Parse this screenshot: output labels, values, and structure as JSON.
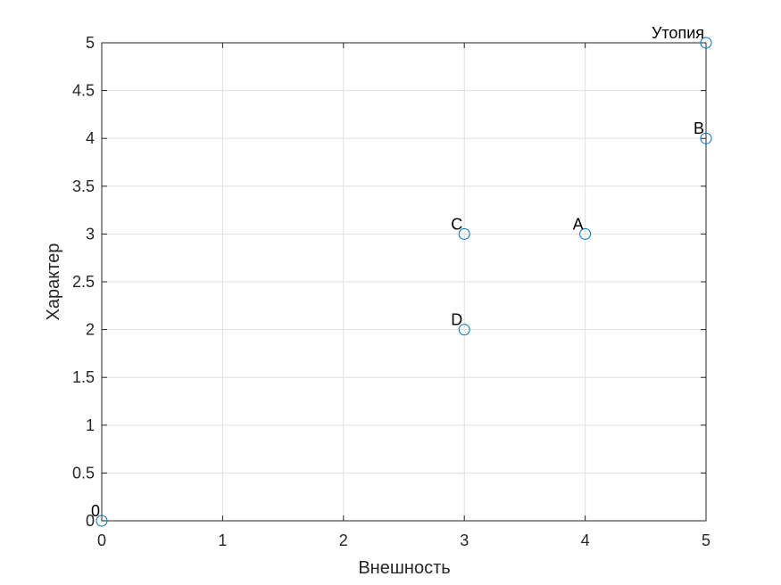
{
  "chart_data": {
    "type": "scatter",
    "xlabel": "Внешность",
    "ylabel": "Характер",
    "xlim": [
      0,
      5
    ],
    "ylim": [
      0,
      5
    ],
    "x_ticks": [
      "0",
      "1",
      "2",
      "3",
      "4",
      "5"
    ],
    "y_ticks": [
      "0",
      "0.5",
      "1",
      "1.5",
      "2",
      "2.5",
      "3",
      "3.5",
      "4",
      "4.5",
      "5"
    ],
    "grid": true,
    "marker": "circle-open",
    "color": "#0072BD",
    "points": [
      {
        "label": "0",
        "x": 0,
        "y": 0
      },
      {
        "label": "C",
        "x": 3,
        "y": 3
      },
      {
        "label": "D",
        "x": 3,
        "y": 2
      },
      {
        "label": "A",
        "x": 4,
        "y": 3
      },
      {
        "label": "B",
        "x": 5,
        "y": 4
      },
      {
        "label": "Утопия",
        "x": 5,
        "y": 5
      }
    ]
  }
}
